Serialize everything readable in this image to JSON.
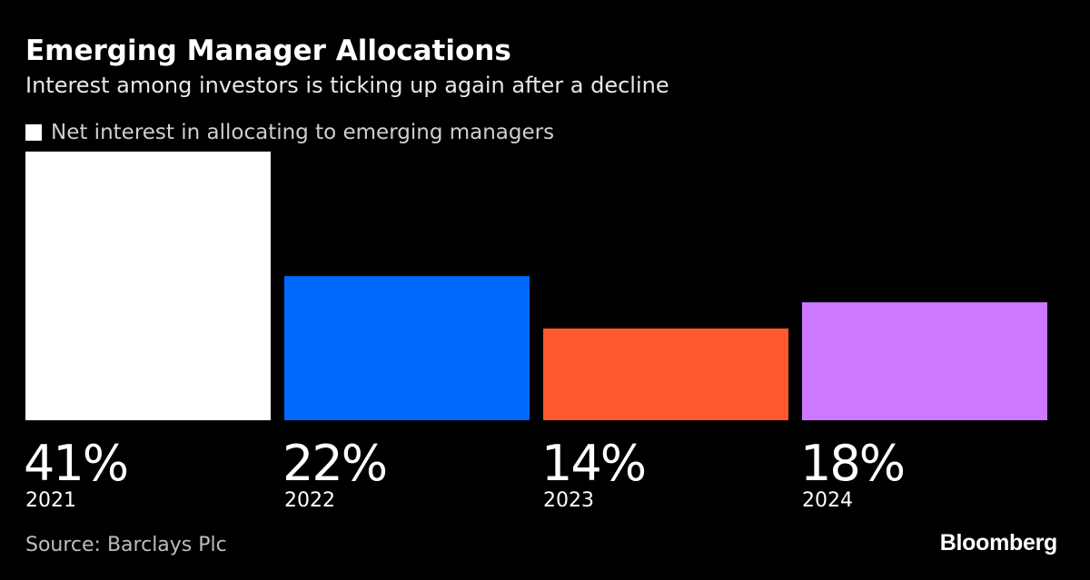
{
  "chart_data": {
    "type": "bar",
    "title": "Emerging Manager Allocations",
    "subtitle": "Interest among investors is ticking up again after a decline",
    "legend": {
      "label": "Net interest in allocating to emerging managers",
      "color": "#ffffff",
      "placement": "top-left"
    },
    "categories": [
      "2021",
      "2022",
      "2023",
      "2024"
    ],
    "values": [
      41,
      22,
      14,
      18
    ],
    "value_labels": [
      "41%",
      "22%",
      "14%",
      "18%"
    ],
    "bar_colors": [
      "#ffffff",
      "#0068ff",
      "#ff5a2e",
      "#cc78ff"
    ],
    "ylim": [
      0,
      41
    ],
    "grid": false,
    "xlabel": "",
    "ylabel": ""
  },
  "footer": {
    "source": "Source: Barclays Plc",
    "brand": "Bloomberg"
  }
}
